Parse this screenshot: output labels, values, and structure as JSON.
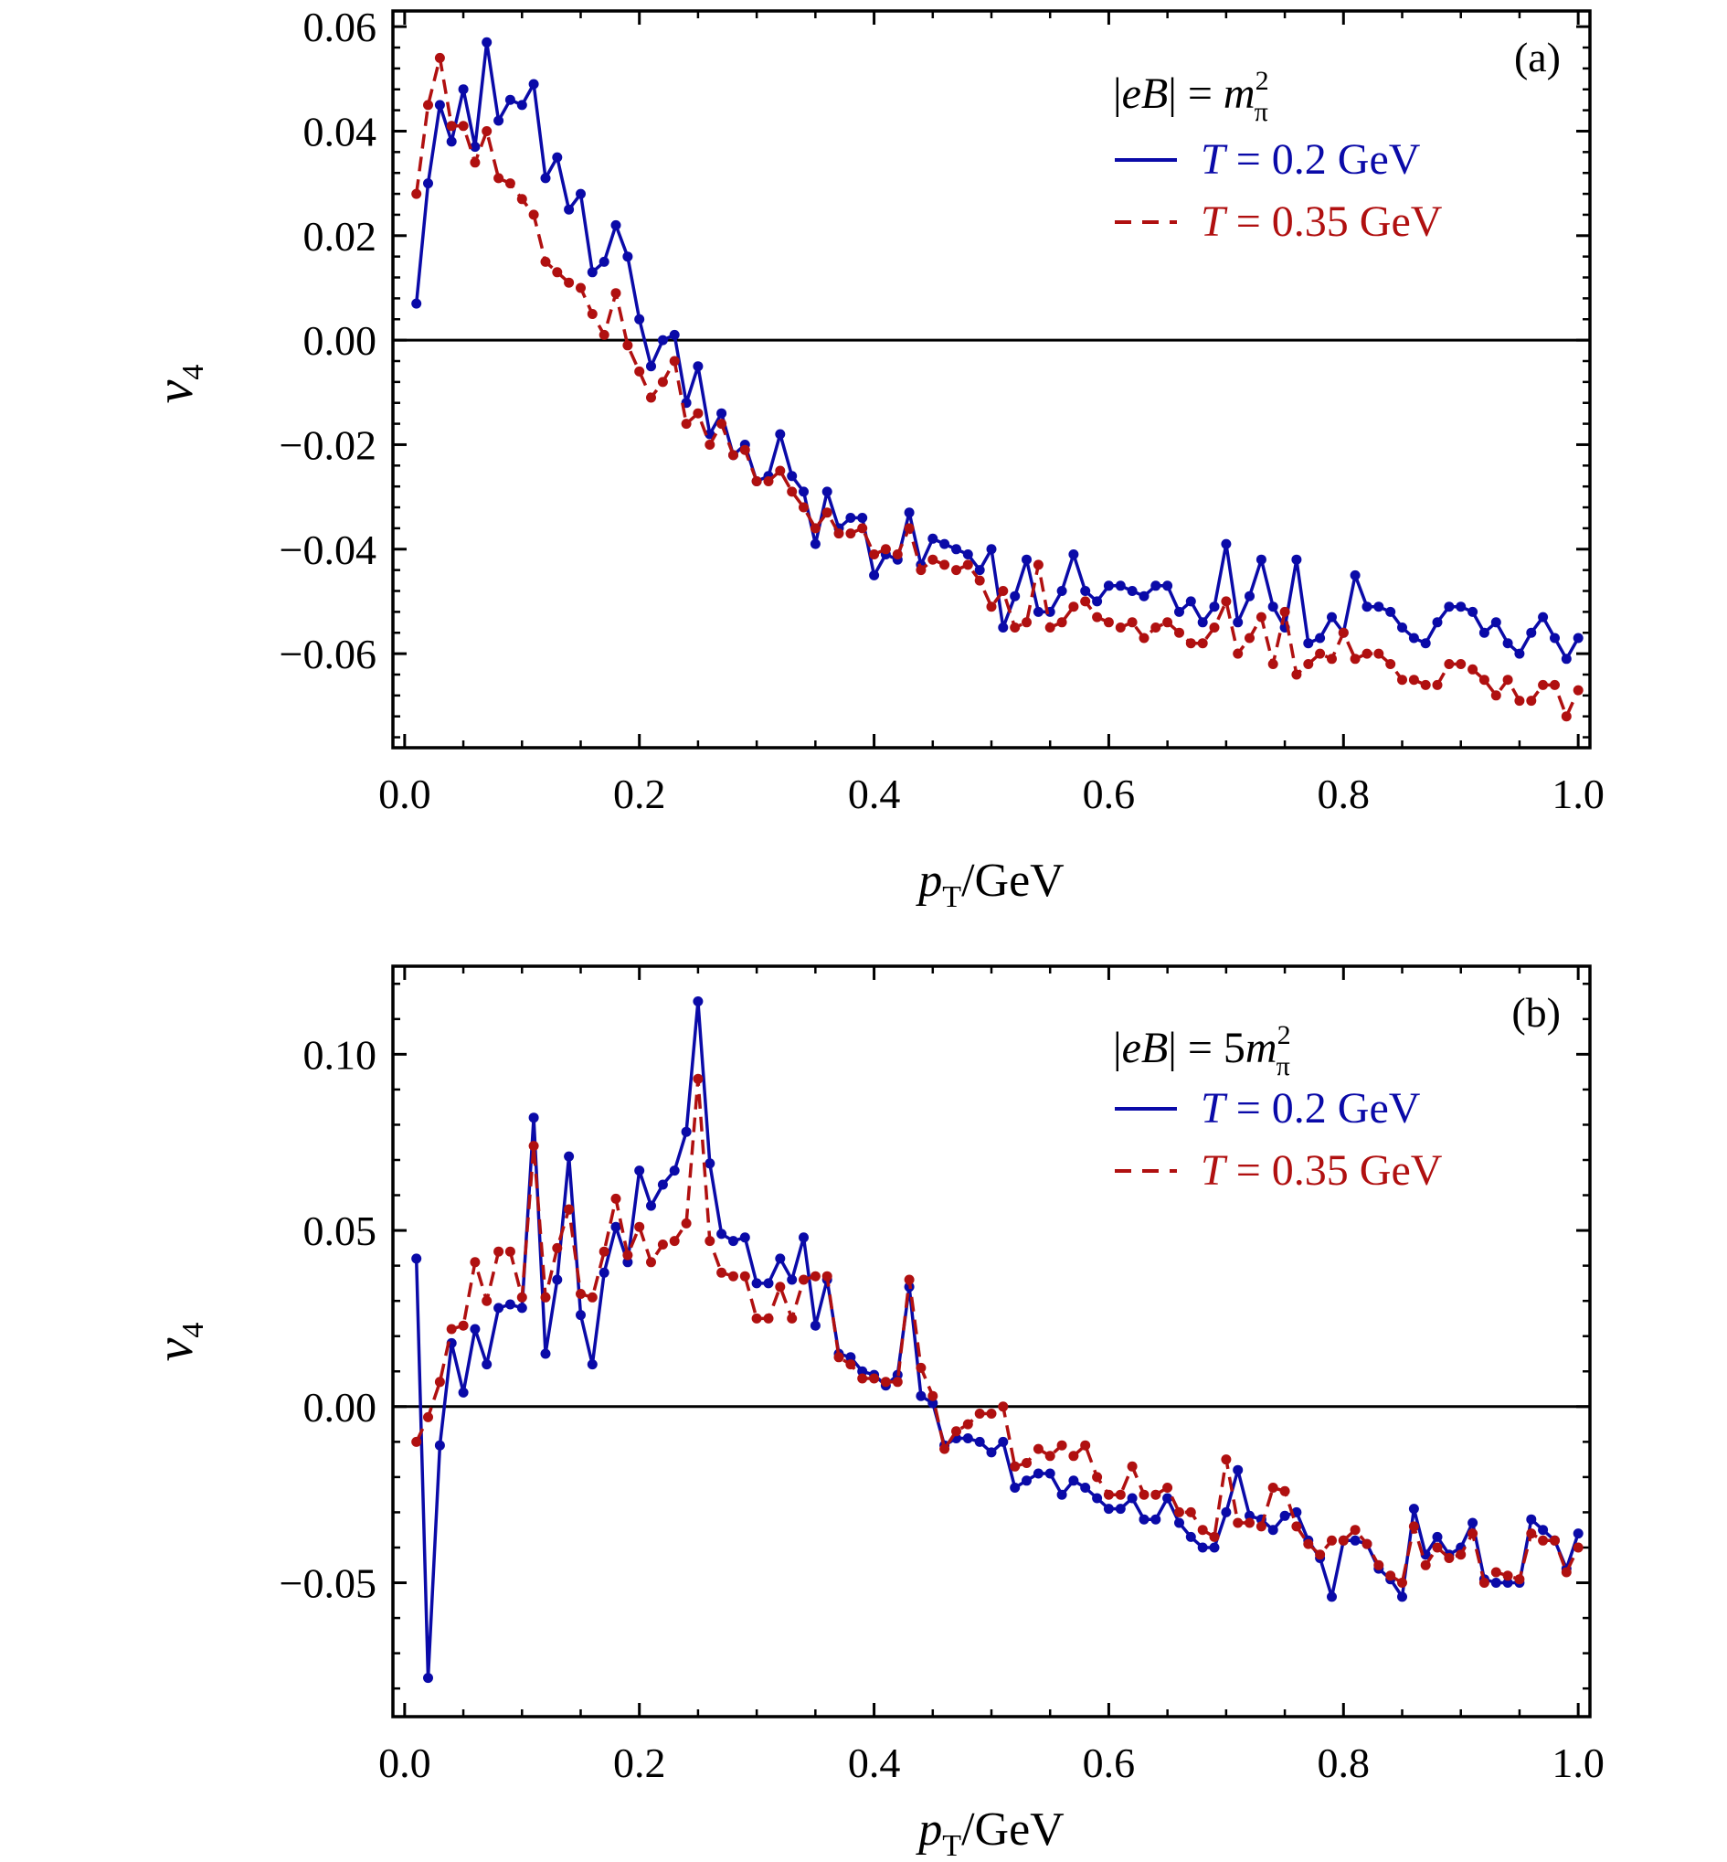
{
  "chart_data": [
    {
      "type": "line",
      "panel_label": "(a)",
      "annotation": {
        "prefix": "|eB| = ",
        "symbol": "m",
        "superscript": "2",
        "subscript": "π"
      },
      "xlabel": {
        "main": "p",
        "sub": "T",
        "tail": "/GeV"
      },
      "ylabel": {
        "main": "v",
        "sub": "4"
      },
      "xlim": [
        -0.01,
        1.01
      ],
      "ylim": [
        -0.078,
        0.063
      ],
      "xticks": [
        0.0,
        0.2,
        0.4,
        0.6,
        0.8,
        1.0
      ],
      "xtick_labels": [
        "0.0",
        "0.2",
        "0.4",
        "0.6",
        "0.8",
        "1.0"
      ],
      "yticks": [
        0.06,
        0.04,
        0.02,
        0.0,
        -0.02,
        -0.04,
        -0.06
      ],
      "ytick_labels": [
        "0.06",
        "0.04",
        "0.02",
        "0.00",
        "−0.02",
        "−0.04",
        "−0.06"
      ],
      "zero_line": true,
      "legend_position": "top-right",
      "x": [
        0.01,
        0.02,
        0.03,
        0.04,
        0.05,
        0.06,
        0.07,
        0.08,
        0.09,
        0.1,
        0.11,
        0.12,
        0.13,
        0.14,
        0.15,
        0.16,
        0.17,
        0.18,
        0.19,
        0.2,
        0.21,
        0.22,
        0.23,
        0.24,
        0.25,
        0.26,
        0.27,
        0.28,
        0.29,
        0.3,
        0.31,
        0.32,
        0.33,
        0.34,
        0.35,
        0.36,
        0.37,
        0.38,
        0.39,
        0.4,
        0.41,
        0.42,
        0.43,
        0.44,
        0.45,
        0.46,
        0.47,
        0.48,
        0.49,
        0.5,
        0.51,
        0.52,
        0.53,
        0.54,
        0.55,
        0.56,
        0.57,
        0.58,
        0.59,
        0.6,
        0.61,
        0.62,
        0.63,
        0.64,
        0.65,
        0.66,
        0.67,
        0.68,
        0.69,
        0.7,
        0.71,
        0.72,
        0.73,
        0.74,
        0.75,
        0.76,
        0.77,
        0.78,
        0.79,
        0.8,
        0.81,
        0.82,
        0.83,
        0.84,
        0.85,
        0.86,
        0.87,
        0.88,
        0.89,
        0.9,
        0.91,
        0.92,
        0.93,
        0.94,
        0.95,
        0.96,
        0.97,
        0.98,
        0.99,
        1.0
      ],
      "series": [
        {
          "name": "T = 0.2 GeV",
          "color": "#0a0aa8",
          "dash": "solid",
          "values": [
            0.007,
            0.03,
            0.045,
            0.038,
            0.048,
            0.037,
            0.057,
            0.042,
            0.046,
            0.045,
            0.049,
            0.031,
            0.035,
            0.025,
            0.028,
            0.013,
            0.015,
            0.022,
            0.016,
            0.004,
            -0.005,
            0.0,
            0.001,
            -0.012,
            -0.005,
            -0.018,
            -0.014,
            -0.022,
            -0.02,
            -0.027,
            -0.026,
            -0.018,
            -0.026,
            -0.029,
            -0.039,
            -0.029,
            -0.036,
            -0.034,
            -0.034,
            -0.045,
            -0.041,
            -0.042,
            -0.033,
            -0.043,
            -0.038,
            -0.039,
            -0.04,
            -0.041,
            -0.044,
            -0.04,
            -0.055,
            -0.049,
            -0.042,
            -0.052,
            -0.052,
            -0.048,
            -0.041,
            -0.048,
            -0.05,
            -0.047,
            -0.047,
            -0.048,
            -0.049,
            -0.047,
            -0.047,
            -0.052,
            -0.05,
            -0.054,
            -0.051,
            -0.039,
            -0.054,
            -0.049,
            -0.042,
            -0.051,
            -0.055,
            -0.042,
            -0.058,
            -0.057,
            -0.053,
            -0.056,
            -0.045,
            -0.051,
            -0.051,
            -0.052,
            -0.055,
            -0.057,
            -0.058,
            -0.054,
            -0.051,
            -0.051,
            -0.052,
            -0.056,
            -0.054,
            -0.058,
            -0.06,
            -0.056,
            -0.053,
            -0.057,
            -0.061,
            -0.057
          ]
        },
        {
          "name": "T = 0.35 GeV",
          "color": "#b01010",
          "dash": "dashed",
          "values": [
            0.028,
            0.045,
            0.054,
            0.041,
            0.041,
            0.034,
            0.04,
            0.031,
            0.03,
            0.027,
            0.024,
            0.015,
            0.013,
            0.011,
            0.01,
            0.005,
            0.001,
            0.009,
            -0.001,
            -0.006,
            -0.011,
            -0.008,
            -0.004,
            -0.016,
            -0.014,
            -0.02,
            -0.016,
            -0.022,
            -0.021,
            -0.027,
            -0.027,
            -0.025,
            -0.029,
            -0.032,
            -0.036,
            -0.033,
            -0.037,
            -0.037,
            -0.036,
            -0.041,
            -0.04,
            -0.041,
            -0.036,
            -0.044,
            -0.042,
            -0.043,
            -0.044,
            -0.043,
            -0.046,
            -0.051,
            -0.048,
            -0.055,
            -0.054,
            -0.043,
            -0.055,
            -0.054,
            -0.051,
            -0.05,
            -0.053,
            -0.054,
            -0.055,
            -0.054,
            -0.057,
            -0.055,
            -0.054,
            -0.056,
            -0.058,
            -0.058,
            -0.055,
            -0.05,
            -0.06,
            -0.057,
            -0.053,
            -0.062,
            -0.052,
            -0.064,
            -0.062,
            -0.06,
            -0.061,
            -0.056,
            -0.061,
            -0.06,
            -0.06,
            -0.062,
            -0.065,
            -0.065,
            -0.066,
            -0.066,
            -0.062,
            -0.062,
            -0.063,
            -0.065,
            -0.068,
            -0.065,
            -0.069,
            -0.069,
            -0.066,
            -0.066,
            -0.072,
            -0.067
          ]
        }
      ]
    },
    {
      "type": "line",
      "panel_label": "(b)",
      "annotation": {
        "prefix": "|eB| = 5",
        "symbol": "m",
        "superscript": "2",
        "subscript": "π"
      },
      "xlabel": {
        "main": "p",
        "sub": "T",
        "tail": "/GeV"
      },
      "ylabel": {
        "main": "v",
        "sub": "4"
      },
      "xlim": [
        -0.01,
        1.01
      ],
      "ylim": [
        -0.088,
        0.125
      ],
      "xticks": [
        0.0,
        0.2,
        0.4,
        0.6,
        0.8,
        1.0
      ],
      "xtick_labels": [
        "0.0",
        "0.2",
        "0.4",
        "0.6",
        "0.8",
        "1.0"
      ],
      "yticks": [
        0.1,
        0.05,
        0.0,
        -0.05
      ],
      "ytick_labels": [
        "0.10",
        "0.05",
        "0.00",
        "−0.05"
      ],
      "zero_line": true,
      "legend_position": "top-right",
      "x": [
        0.01,
        0.02,
        0.03,
        0.04,
        0.05,
        0.06,
        0.07,
        0.08,
        0.09,
        0.1,
        0.11,
        0.12,
        0.13,
        0.14,
        0.15,
        0.16,
        0.17,
        0.18,
        0.19,
        0.2,
        0.21,
        0.22,
        0.23,
        0.24,
        0.25,
        0.26,
        0.27,
        0.28,
        0.29,
        0.3,
        0.31,
        0.32,
        0.33,
        0.34,
        0.35,
        0.36,
        0.37,
        0.38,
        0.39,
        0.4,
        0.41,
        0.42,
        0.43,
        0.44,
        0.45,
        0.46,
        0.47,
        0.48,
        0.49,
        0.5,
        0.51,
        0.52,
        0.53,
        0.54,
        0.55,
        0.56,
        0.57,
        0.58,
        0.59,
        0.6,
        0.61,
        0.62,
        0.63,
        0.64,
        0.65,
        0.66,
        0.67,
        0.68,
        0.69,
        0.7,
        0.71,
        0.72,
        0.73,
        0.74,
        0.75,
        0.76,
        0.77,
        0.78,
        0.79,
        0.8,
        0.81,
        0.82,
        0.83,
        0.84,
        0.85,
        0.86,
        0.87,
        0.88,
        0.89,
        0.9,
        0.91,
        0.92,
        0.93,
        0.94,
        0.95,
        0.96,
        0.97,
        0.98,
        0.99,
        1.0
      ],
      "series": [
        {
          "name": "T = 0.2 GeV",
          "color": "#0a0aa8",
          "dash": "solid",
          "values": [
            0.042,
            -0.077,
            -0.011,
            0.018,
            0.004,
            0.022,
            0.012,
            0.028,
            0.029,
            0.028,
            0.082,
            0.015,
            0.036,
            0.071,
            0.026,
            0.012,
            0.038,
            0.051,
            0.041,
            0.067,
            0.057,
            0.063,
            0.067,
            0.078,
            0.115,
            0.069,
            0.049,
            0.047,
            0.048,
            0.035,
            0.035,
            0.042,
            0.036,
            0.048,
            0.023,
            0.036,
            0.015,
            0.014,
            0.01,
            0.009,
            0.006,
            0.009,
            0.034,
            0.003,
            0.001,
            -0.011,
            -0.009,
            -0.009,
            -0.01,
            -0.013,
            -0.01,
            -0.023,
            -0.021,
            -0.019,
            -0.019,
            -0.025,
            -0.021,
            -0.023,
            -0.026,
            -0.029,
            -0.029,
            -0.026,
            -0.032,
            -0.032,
            -0.026,
            -0.033,
            -0.037,
            -0.04,
            -0.04,
            -0.03,
            -0.018,
            -0.031,
            -0.032,
            -0.035,
            -0.031,
            -0.03,
            -0.038,
            -0.043,
            -0.054,
            -0.038,
            -0.038,
            -0.039,
            -0.046,
            -0.049,
            -0.054,
            -0.029,
            -0.042,
            -0.037,
            -0.042,
            -0.04,
            -0.033,
            -0.049,
            -0.05,
            -0.05,
            -0.05,
            -0.032,
            -0.035,
            -0.038,
            -0.046,
            -0.036
          ]
        },
        {
          "name": "T = 0.35 GeV",
          "color": "#b01010",
          "dash": "dashed",
          "values": [
            -0.01,
            -0.003,
            0.007,
            0.022,
            0.023,
            0.041,
            0.03,
            0.044,
            0.044,
            0.031,
            0.074,
            0.031,
            0.045,
            0.056,
            0.032,
            0.031,
            0.044,
            0.059,
            0.043,
            0.051,
            0.041,
            0.046,
            0.047,
            0.052,
            0.093,
            0.047,
            0.038,
            0.037,
            0.037,
            0.025,
            0.025,
            0.034,
            0.025,
            0.036,
            0.037,
            0.037,
            0.014,
            0.012,
            0.008,
            0.008,
            0.007,
            0.007,
            0.036,
            0.011,
            0.003,
            -0.012,
            -0.007,
            -0.005,
            -0.002,
            -0.002,
            0.0,
            -0.017,
            -0.016,
            -0.012,
            -0.014,
            -0.011,
            -0.014,
            -0.011,
            -0.02,
            -0.025,
            -0.025,
            -0.017,
            -0.025,
            -0.025,
            -0.023,
            -0.03,
            -0.03,
            -0.035,
            -0.037,
            -0.015,
            -0.033,
            -0.033,
            -0.034,
            -0.023,
            -0.024,
            -0.034,
            -0.039,
            -0.042,
            -0.038,
            -0.038,
            -0.035,
            -0.039,
            -0.045,
            -0.048,
            -0.05,
            -0.034,
            -0.045,
            -0.04,
            -0.043,
            -0.042,
            -0.036,
            -0.05,
            -0.047,
            -0.048,
            -0.049,
            -0.036,
            -0.038,
            -0.038,
            -0.047,
            -0.04
          ]
        }
      ]
    }
  ]
}
